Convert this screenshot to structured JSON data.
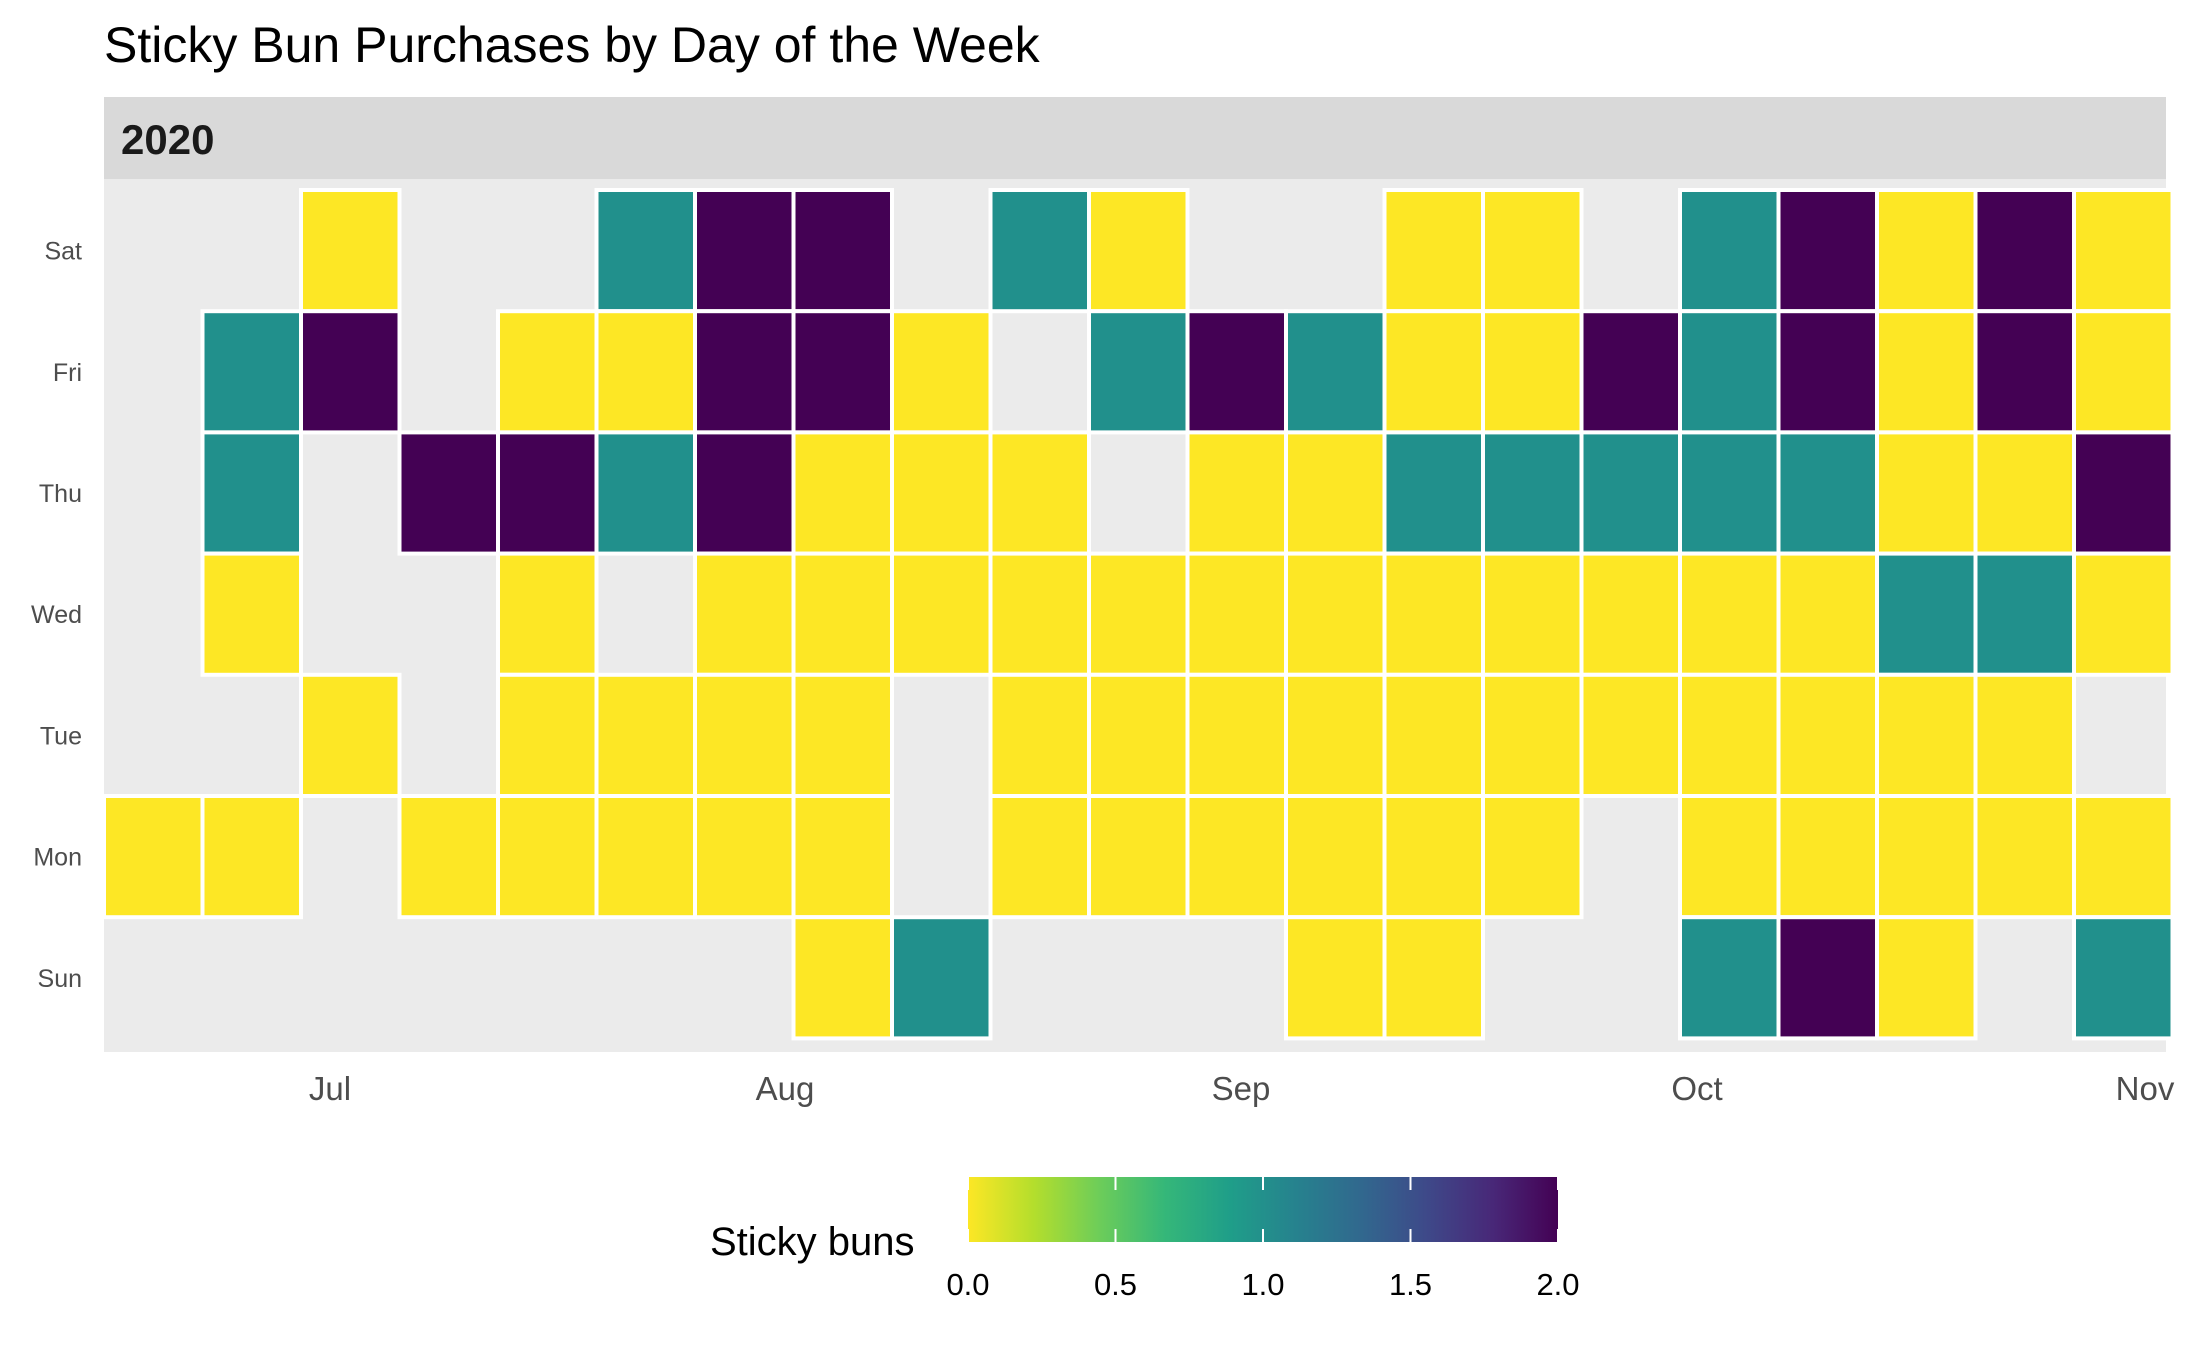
{
  "chart_data": {
    "type": "heatmap",
    "title": "Sticky Bun Purchases by Day of the Week",
    "facet_label": "2020",
    "days": [
      "Sat",
      "Fri",
      "Thu",
      "Wed",
      "Tue",
      "Mon",
      "Sun"
    ],
    "x_ticks": [
      "Jul",
      "Aug",
      "Sep",
      "Oct",
      "Nov"
    ],
    "legend": {
      "title": "Sticky buns",
      "ticks": [
        "0.0",
        "0.5",
        "1.0",
        "1.5",
        "2.0"
      ],
      "range": [
        0,
        2
      ],
      "position": "bottom"
    },
    "colors": {
      "low": "#FDE725",
      "mid": "#21908C",
      "high": "#440154",
      "panel": "#EBEBEB",
      "strip": "#D9D9D9",
      "tile_border": "#FFFFFF"
    },
    "gradient_stops": [
      "#FDE725",
      "#B4DE2C",
      "#6DCD59",
      "#35B779",
      "#1F9E89",
      "#26828E",
      "#31688E",
      "#3E4989",
      "#482878",
      "#440154"
    ],
    "columns": [
      {
        "week": 0,
        "values": [
          null,
          null,
          null,
          null,
          null,
          0,
          null
        ]
      },
      {
        "week": 1,
        "values": [
          null,
          1,
          1,
          0,
          null,
          0,
          null
        ]
      },
      {
        "week": 2,
        "values": [
          0,
          2,
          null,
          null,
          0,
          null,
          null
        ]
      },
      {
        "week": 3,
        "values": [
          null,
          null,
          2,
          null,
          null,
          0,
          null
        ]
      },
      {
        "week": 4,
        "values": [
          null,
          0,
          2,
          0,
          0,
          0,
          null
        ]
      },
      {
        "week": 5,
        "values": [
          1,
          0,
          1,
          null,
          0,
          0,
          null
        ]
      },
      {
        "week": 6,
        "values": [
          2,
          2,
          2,
          0,
          0,
          0,
          null
        ]
      },
      {
        "week": 7,
        "values": [
          2,
          2,
          0,
          0,
          0,
          0,
          0
        ]
      },
      {
        "week": 8,
        "values": [
          null,
          0,
          0,
          0,
          null,
          null,
          1
        ]
      },
      {
        "week": 9,
        "values": [
          1,
          null,
          0,
          0,
          0,
          0,
          null
        ]
      },
      {
        "week": 10,
        "values": [
          0,
          1,
          null,
          0,
          0,
          0,
          null
        ]
      },
      {
        "week": 11,
        "values": [
          null,
          2,
          0,
          0,
          0,
          0,
          null
        ]
      },
      {
        "week": 12,
        "values": [
          null,
          1,
          0,
          0,
          0,
          0,
          0
        ]
      },
      {
        "week": 13,
        "values": [
          0,
          0,
          1,
          0,
          0,
          0,
          0
        ]
      },
      {
        "week": 14,
        "values": [
          0,
          0,
          1,
          0,
          0,
          0,
          null
        ]
      },
      {
        "week": 15,
        "values": [
          null,
          2,
          1,
          0,
          0,
          null,
          null
        ]
      },
      {
        "week": 16,
        "values": [
          1,
          1,
          1,
          0,
          0,
          0,
          1
        ]
      },
      {
        "week": 17,
        "values": [
          2,
          2,
          1,
          0,
          0,
          0,
          2
        ]
      },
      {
        "week": 18,
        "values": [
          0,
          0,
          0,
          1,
          0,
          0,
          0
        ]
      },
      {
        "week": 19,
        "values": [
          2,
          2,
          0,
          1,
          0,
          0,
          null
        ]
      },
      {
        "week": 20,
        "values": [
          0,
          0,
          2,
          0,
          null,
          0,
          1
        ]
      }
    ]
  }
}
